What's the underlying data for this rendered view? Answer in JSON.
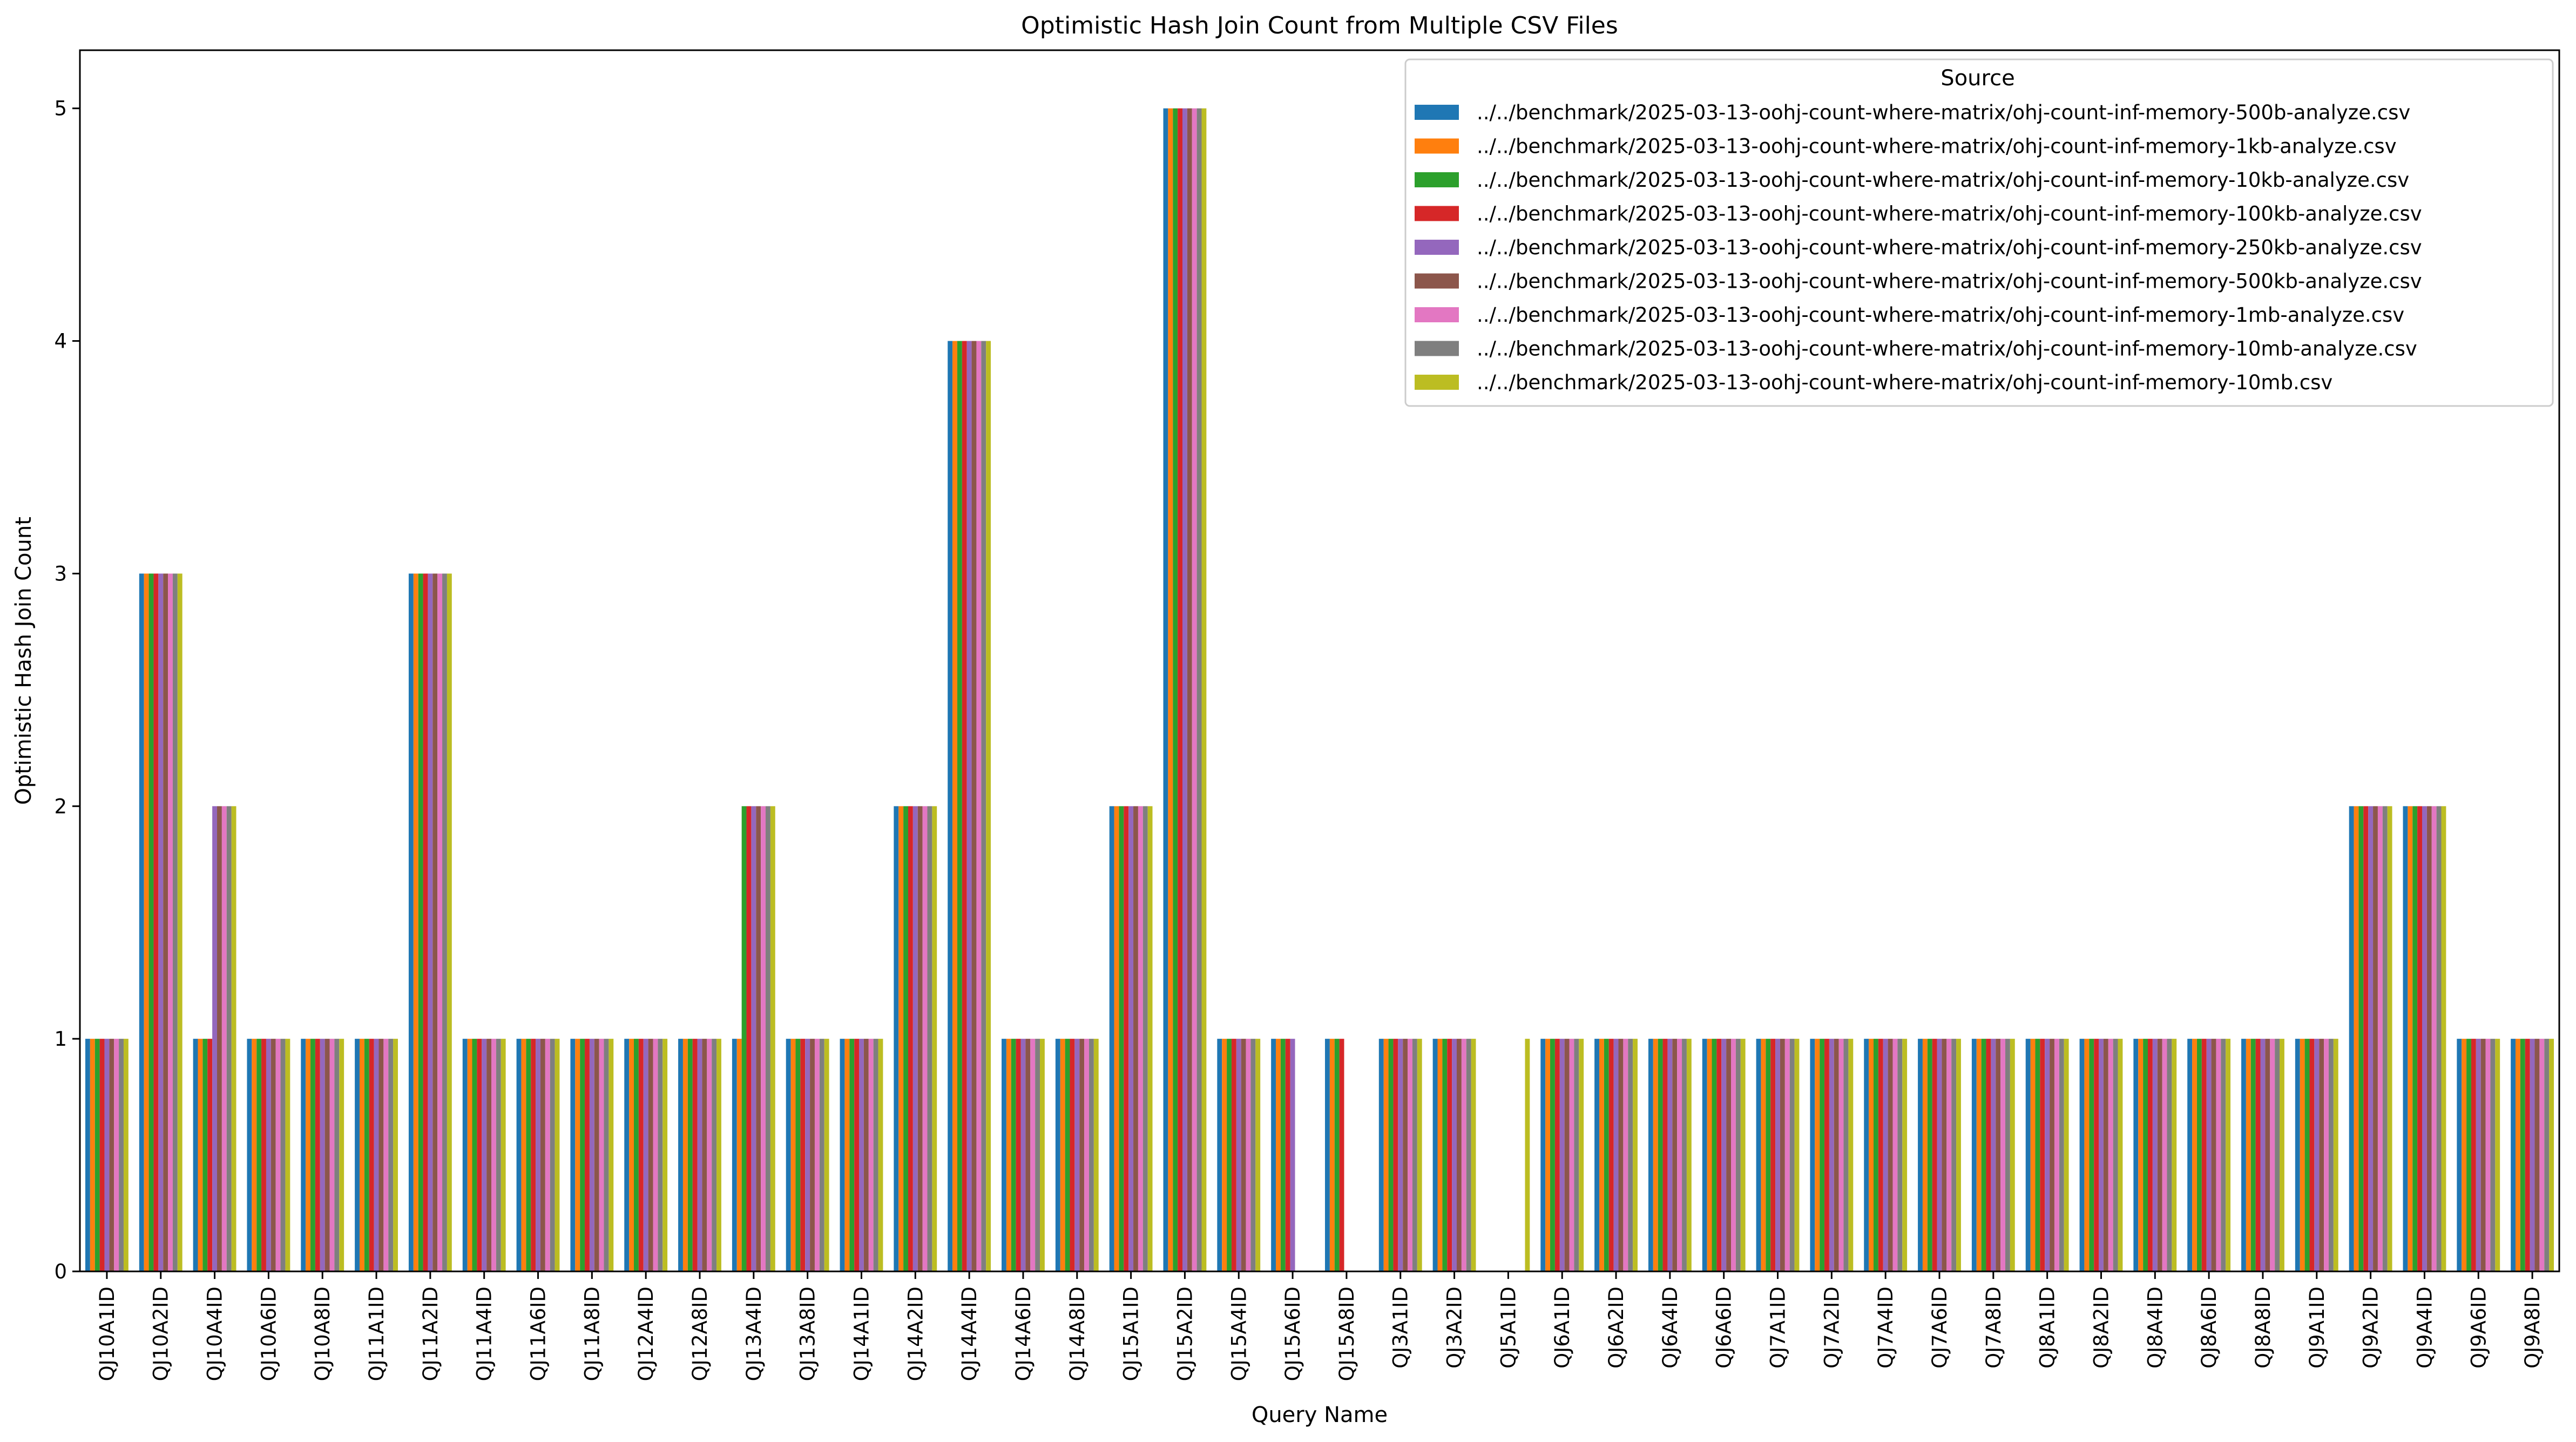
{
  "chart_data": {
    "type": "bar",
    "title": "Optimistic Hash Join Count from Multiple CSV Files",
    "xlabel": "Query Name",
    "ylabel": "Optimistic Hash Join Count",
    "ylim": [
      0,
      5.25
    ],
    "yticks": [
      0,
      1,
      2,
      3,
      4,
      5
    ],
    "grid": false,
    "legend": {
      "title": "Source",
      "placement": "top-right"
    },
    "categories": [
      "QJ10A1ID",
      "QJ10A2ID",
      "QJ10A4ID",
      "QJ10A6ID",
      "QJ10A8ID",
      "QJ11A1ID",
      "QJ11A2ID",
      "QJ11A4ID",
      "QJ11A6ID",
      "QJ11A8ID",
      "QJ12A4ID",
      "QJ12A8ID",
      "QJ13A4ID",
      "QJ13A8ID",
      "QJ14A1ID",
      "QJ14A2ID",
      "QJ14A4ID",
      "QJ14A6ID",
      "QJ14A8ID",
      "QJ15A1ID",
      "QJ15A2ID",
      "QJ15A4ID",
      "QJ15A6ID",
      "QJ15A8ID",
      "QJ3A1ID",
      "QJ3A2ID",
      "QJ5A1ID",
      "QJ6A1ID",
      "QJ6A2ID",
      "QJ6A4ID",
      "QJ6A6ID",
      "QJ7A1ID",
      "QJ7A2ID",
      "QJ7A4ID",
      "QJ7A6ID",
      "QJ7A8ID",
      "QJ8A1ID",
      "QJ8A2ID",
      "QJ8A4ID",
      "QJ8A6ID",
      "QJ8A8ID",
      "QJ9A1ID",
      "QJ9A2ID",
      "QJ9A4ID",
      "QJ9A6ID",
      "QJ9A8ID"
    ],
    "series": [
      {
        "name": "../../benchmark/2025-03-13-oohj-count-where-matrix/ohj-count-inf-memory-500b-analyze.csv",
        "color": "#1f77b4",
        "values": [
          1,
          3,
          1,
          1,
          1,
          1,
          3,
          1,
          1,
          1,
          1,
          1,
          1,
          1,
          1,
          2,
          4,
          1,
          1,
          2,
          5,
          1,
          1,
          1,
          1,
          1,
          0,
          1,
          1,
          1,
          1,
          1,
          1,
          1,
          1,
          1,
          1,
          1,
          1,
          1,
          1,
          1,
          2,
          2,
          1,
          1
        ]
      },
      {
        "name": "../../benchmark/2025-03-13-oohj-count-where-matrix/ohj-count-inf-memory-1kb-analyze.csv",
        "color": "#ff7f0e",
        "values": [
          1,
          3,
          1,
          1,
          1,
          1,
          3,
          1,
          1,
          1,
          1,
          1,
          1,
          1,
          1,
          2,
          4,
          1,
          1,
          2,
          5,
          1,
          1,
          1,
          1,
          1,
          0,
          1,
          1,
          1,
          1,
          1,
          1,
          1,
          1,
          1,
          1,
          1,
          1,
          1,
          1,
          1,
          2,
          2,
          1,
          1
        ]
      },
      {
        "name": "../../benchmark/2025-03-13-oohj-count-where-matrix/ohj-count-inf-memory-10kb-analyze.csv",
        "color": "#2ca02c",
        "values": [
          1,
          3,
          1,
          1,
          1,
          1,
          3,
          1,
          1,
          1,
          1,
          1,
          2,
          1,
          1,
          2,
          4,
          1,
          1,
          2,
          5,
          1,
          1,
          1,
          1,
          1,
          0,
          1,
          1,
          1,
          1,
          1,
          1,
          1,
          1,
          1,
          1,
          1,
          1,
          1,
          1,
          1,
          2,
          2,
          1,
          1
        ]
      },
      {
        "name": "../../benchmark/2025-03-13-oohj-count-where-matrix/ohj-count-inf-memory-100kb-analyze.csv",
        "color": "#d62728",
        "values": [
          1,
          3,
          1,
          1,
          1,
          1,
          3,
          1,
          1,
          1,
          1,
          1,
          2,
          1,
          1,
          2,
          4,
          1,
          1,
          2,
          5,
          1,
          1,
          1,
          1,
          1,
          0,
          1,
          1,
          1,
          1,
          1,
          1,
          1,
          1,
          1,
          1,
          1,
          1,
          1,
          1,
          1,
          2,
          2,
          1,
          1
        ]
      },
      {
        "name": "../../benchmark/2025-03-13-oohj-count-where-matrix/ohj-count-inf-memory-250kb-analyze.csv",
        "color": "#9467bd",
        "values": [
          1,
          3,
          2,
          1,
          1,
          1,
          3,
          1,
          1,
          1,
          1,
          1,
          2,
          1,
          1,
          2,
          4,
          1,
          1,
          2,
          5,
          1,
          1,
          0,
          1,
          1,
          0,
          1,
          1,
          1,
          1,
          1,
          1,
          1,
          1,
          1,
          1,
          1,
          1,
          1,
          1,
          1,
          2,
          2,
          1,
          1
        ]
      },
      {
        "name": "../../benchmark/2025-03-13-oohj-count-where-matrix/ohj-count-inf-memory-500kb-analyze.csv",
        "color": "#8c564b",
        "values": [
          1,
          3,
          2,
          1,
          1,
          1,
          3,
          1,
          1,
          1,
          1,
          1,
          2,
          1,
          1,
          2,
          4,
          1,
          1,
          2,
          5,
          1,
          0,
          0,
          1,
          1,
          0,
          1,
          1,
          1,
          1,
          1,
          1,
          1,
          1,
          1,
          1,
          1,
          1,
          1,
          1,
          1,
          2,
          2,
          1,
          1
        ]
      },
      {
        "name": "../../benchmark/2025-03-13-oohj-count-where-matrix/ohj-count-inf-memory-1mb-analyze.csv",
        "color": "#e377c2",
        "values": [
          1,
          3,
          2,
          1,
          1,
          1,
          3,
          1,
          1,
          1,
          1,
          1,
          2,
          1,
          1,
          2,
          4,
          1,
          1,
          2,
          5,
          1,
          0,
          0,
          1,
          1,
          0,
          1,
          1,
          1,
          1,
          1,
          1,
          1,
          1,
          1,
          1,
          1,
          1,
          1,
          1,
          1,
          2,
          2,
          1,
          1
        ]
      },
      {
        "name": "../../benchmark/2025-03-13-oohj-count-where-matrix/ohj-count-inf-memory-10mb-analyze.csv",
        "color": "#7f7f7f",
        "values": [
          1,
          3,
          2,
          1,
          1,
          1,
          3,
          1,
          1,
          1,
          1,
          1,
          2,
          1,
          1,
          2,
          4,
          1,
          1,
          2,
          5,
          1,
          0,
          0,
          1,
          1,
          0,
          1,
          1,
          1,
          1,
          1,
          1,
          1,
          1,
          1,
          1,
          1,
          1,
          1,
          1,
          1,
          2,
          2,
          1,
          1
        ]
      },
      {
        "name": "../../benchmark/2025-03-13-oohj-count-where-matrix/ohj-count-inf-memory-10mb.csv",
        "color": "#bcbd22",
        "values": [
          1,
          3,
          2,
          1,
          1,
          1,
          3,
          1,
          1,
          1,
          1,
          1,
          2,
          1,
          1,
          2,
          4,
          1,
          1,
          2,
          5,
          1,
          0,
          0,
          1,
          1,
          1,
          1,
          1,
          1,
          1,
          1,
          1,
          1,
          1,
          1,
          1,
          1,
          1,
          1,
          1,
          1,
          2,
          2,
          1,
          1
        ]
      }
    ]
  }
}
